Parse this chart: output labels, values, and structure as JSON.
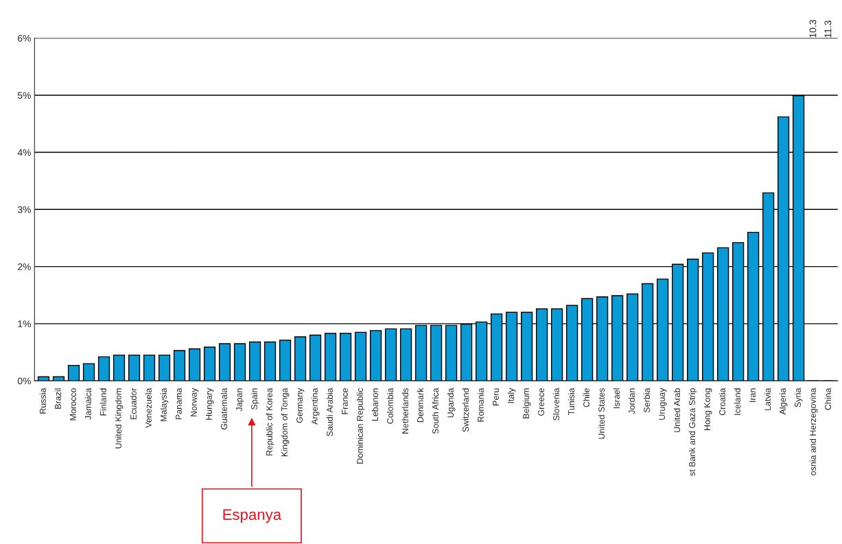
{
  "chart_data": {
    "type": "bar",
    "categories": [
      "Russia",
      "Brazil",
      "Morocco",
      "Jamaica",
      "Finland",
      "United Kingdom",
      "Ecuador",
      "Venezuela",
      "Malaysia",
      "Panama",
      "Norway",
      "Hungary",
      "Guatemala",
      "Japan",
      "Spain",
      "Republic of Korea",
      "Kingdom of Tonga",
      "Germany",
      "Argentina",
      "Saudi Arabia",
      "France",
      "Dominican Republic",
      "Lebanon",
      "Colombia",
      "Netherlands",
      "Denmark",
      "South Africa",
      "Uganda",
      "Switzerland",
      "Romania",
      "Peru",
      "Italy",
      "Belgium",
      "Greece",
      "Slovenia",
      "Tunisia",
      "Chile",
      "United States",
      "Israel",
      "Jordan",
      "Serbia",
      "Uruguay",
      "United Arab",
      "st Bank and Gaza Strip",
      "Hong Kong",
      "Croatia",
      "Iceland",
      "Iran",
      "Latvia",
      "Algeria",
      "Syria",
      "osnia and Herzegovina",
      "China"
    ],
    "values": [
      0.07,
      0.07,
      0.27,
      0.3,
      0.42,
      0.45,
      0.45,
      0.45,
      0.45,
      0.53,
      0.56,
      0.59,
      0.65,
      0.65,
      0.68,
      0.68,
      0.71,
      0.77,
      0.8,
      0.83,
      0.83,
      0.85,
      0.88,
      0.91,
      0.91,
      0.97,
      0.97,
      0.97,
      0.99,
      1.03,
      1.17,
      1.2,
      1.2,
      1.26,
      1.26,
      1.32,
      1.44,
      1.47,
      1.49,
      1.52,
      1.7,
      1.78,
      2.04,
      2.13,
      2.24,
      2.33,
      2.42,
      2.6,
      3.29,
      4.62,
      4.99,
      null,
      null
    ],
    "value_labels": [
      null,
      null,
      null,
      null,
      null,
      null,
      null,
      null,
      null,
      null,
      null,
      null,
      null,
      null,
      null,
      null,
      null,
      null,
      null,
      null,
      null,
      null,
      null,
      null,
      null,
      null,
      null,
      null,
      null,
      null,
      null,
      null,
      null,
      null,
      null,
      null,
      null,
      null,
      null,
      null,
      null,
      null,
      null,
      null,
      null,
      null,
      null,
      null,
      null,
      null,
      null,
      "10.3",
      "11.3"
    ],
    "color": "#0a9ad6",
    "ylim": [
      0,
      6
    ],
    "yticks": [
      {
        "value": 0,
        "label": "0%"
      },
      {
        "value": 1,
        "label": "1%"
      },
      {
        "value": 2,
        "label": "2%"
      },
      {
        "value": 3,
        "label": "3%"
      },
      {
        "value": 4,
        "label": "4%"
      },
      {
        "value": 5,
        "label": "5%"
      },
      {
        "value": 6,
        "label": "6%"
      }
    ],
    "grid": "y",
    "legend": false,
    "annotations": [
      "Espanya"
    ]
  }
}
